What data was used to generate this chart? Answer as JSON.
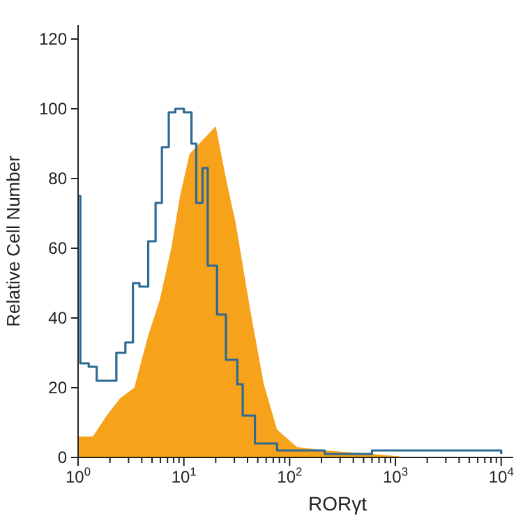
{
  "chart_data": {
    "type": "area",
    "xlabel": "RORγt",
    "ylabel": "Relative Cell Number",
    "log": "x",
    "grid": false,
    "xlim": [
      1,
      13000
    ],
    "ylim": [
      0,
      124
    ],
    "xticks": [
      {
        "value": 1,
        "label": "10$^{0}$"
      },
      {
        "value": 2,
        "label": null
      },
      {
        "value": 3,
        "label": null
      },
      {
        "value": 4,
        "label": null
      },
      {
        "value": 5,
        "label": null
      },
      {
        "value": 6,
        "label": null
      },
      {
        "value": 7,
        "label": null
      },
      {
        "value": 8,
        "label": null
      },
      {
        "value": 9,
        "label": null
      },
      {
        "value": 10,
        "label": "10$^{1}$"
      },
      {
        "value": 20,
        "label": null
      },
      {
        "value": 30,
        "label": null
      },
      {
        "value": 40,
        "label": null
      },
      {
        "value": 50,
        "label": null
      },
      {
        "value": 60,
        "label": null
      },
      {
        "value": 70,
        "label": null
      },
      {
        "value": 80,
        "label": null
      },
      {
        "value": 90,
        "label": null
      },
      {
        "value": 100,
        "label": "10$^{2}$"
      },
      {
        "value": 200,
        "label": null
      },
      {
        "value": 300,
        "label": null
      },
      {
        "value": 400,
        "label": null
      },
      {
        "value": 500,
        "label": null
      },
      {
        "value": 600,
        "label": null
      },
      {
        "value": 700,
        "label": null
      },
      {
        "value": 800,
        "label": null
      },
      {
        "value": 900,
        "label": null
      },
      {
        "value": 1000,
        "label": "10$^{3}$"
      },
      {
        "value": 2000,
        "label": null
      },
      {
        "value": 3000,
        "label": null
      },
      {
        "value": 4000,
        "label": null
      },
      {
        "value": 5000,
        "label": null
      },
      {
        "value": 6000,
        "label": null
      },
      {
        "value": 7000,
        "label": null
      },
      {
        "value": 8000,
        "label": null
      },
      {
        "value": 9000,
        "label": null
      },
      {
        "value": 10000,
        "label": "10$^{4}$"
      }
    ],
    "yticks": [
      0,
      20,
      40,
      60,
      80,
      100,
      120
    ],
    "series": [
      {
        "color": "#f7a21b",
        "x": [
          1,
          1.38,
          1.86,
          2.5,
          3.4,
          4.6,
          5.9,
          7.6,
          9.2,
          11.3,
          15,
          20,
          25,
          31,
          42,
          57,
          76,
          117,
          215,
          600,
          1100
        ],
        "values": [
          6,
          6,
          12,
          17,
          20,
          35,
          45,
          60,
          75,
          87,
          91,
          95,
          80,
          67,
          43,
          21,
          8,
          3,
          2,
          1,
          0.3
        ]
      },
      {
        "type": "step",
        "color": "#2b6a94",
        "x": [
          1,
          1.05,
          1.26,
          1.5,
          1.86,
          2.3,
          2.8,
          3.3,
          3.8,
          4.6,
          5.4,
          6.2,
          7.2,
          8.3,
          10,
          11.8,
          13.1,
          15,
          16.8,
          20.6,
          25,
          32,
          36,
          47,
          76,
          215,
          600,
          1200,
          10000
        ],
        "values": [
          75,
          27,
          26,
          22,
          22,
          30,
          33,
          50,
          49,
          62,
          73,
          89,
          99,
          100,
          99,
          90,
          73,
          83,
          55,
          41,
          28,
          21,
          12,
          4,
          2,
          1,
          2,
          2,
          1
        ]
      }
    ]
  }
}
